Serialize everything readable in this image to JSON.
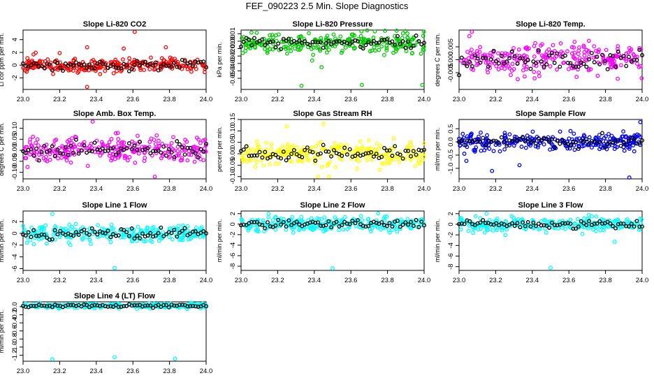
{
  "title": "FEF_090223  2.5 Min. Slope Diagnostics",
  "colors": {
    "red": "#ff0000",
    "green": "#00cc00",
    "magenta": "#ff00ff",
    "yellow": "#ffff00",
    "blue": "#0000ff",
    "cyan": "#00ffff",
    "black": "#000000"
  },
  "x_ticks": [
    "23.0",
    "23.2",
    "23.4",
    "23.6",
    "23.8",
    "24.0"
  ],
  "chart_data": [
    {
      "type": "scatter",
      "title": "Slope Li-820 CO2",
      "ylabel": "Li cor ppm per min.",
      "xlim": [
        23.0,
        24.0
      ],
      "ylim": [
        -3.8,
        5.5
      ],
      "yticks": [
        -2,
        0,
        2,
        4
      ],
      "ytick_labels": [
        "-2",
        "0",
        "2",
        "4"
      ],
      "color_key": "red",
      "base": 0,
      "spread": 1.0,
      "outliers": [
        [
          23.61,
          5.2
        ],
        [
          23.35,
          -3.4
        ],
        [
          23.35,
          2.8
        ],
        [
          23.55,
          2.6
        ],
        [
          23.78,
          2.8
        ],
        [
          23.2,
          1.9
        ]
      ],
      "seed": 11
    },
    {
      "type": "scatter",
      "title": "Slope Li-820 Pressure",
      "ylabel": "kPa per min.",
      "xlim": [
        23.0,
        24.0
      ],
      "ylim": [
        -0.065,
        0.015
      ],
      "yticks": [
        -0.05,
        -0.04,
        -0.03,
        -0.02,
        -0.01,
        0.0,
        0.01
      ],
      "ytick_labels": [
        "-0.05",
        "-0.04",
        "-0.03",
        "-0.02",
        "-0.01",
        "0.00",
        "0.01"
      ],
      "color_key": "green",
      "base": -0.002,
      "spread": 0.012,
      "outliers": [
        [
          23.33,
          -0.06
        ],
        [
          23.66,
          -0.059
        ],
        [
          23.99,
          -0.059
        ],
        [
          23.44,
          -0.035
        ]
      ],
      "seed": 23
    },
    {
      "type": "scatter",
      "title": "Slope Li-820 Temp.",
      "ylabel": "degrees C per min.",
      "xlim": [
        23.0,
        24.0
      ],
      "ylim": [
        -0.0115,
        0.0115
      ],
      "yticks": [
        -0.005,
        0.0,
        0.005
      ],
      "ytick_labels": [
        "-0.005",
        "0.000",
        "0.005"
      ],
      "color_key": "magenta",
      "base": 0,
      "spread": 0.0055,
      "outliers": [
        [
          23.07,
          0.0108
        ]
      ],
      "seed": 37
    },
    {
      "type": "scatter",
      "title": "Slope Amb. Box Temp.",
      "ylabel": "degrees C per min.",
      "xlim": [
        23.0,
        24.0
      ],
      "ylim": [
        -0.13,
        0.14
      ],
      "yticks": [
        -0.1,
        -0.05,
        0.0,
        0.05,
        0.1
      ],
      "ytick_labels": [
        "-0.10",
        "-0.05",
        "0.00",
        "0.05",
        "0.10"
      ],
      "color_key": "magenta",
      "base": 0,
      "spread": 0.055,
      "outliers": [
        [
          23.72,
          -0.12
        ],
        [
          23.38,
          0.13
        ]
      ],
      "seed": 41
    },
    {
      "type": "scatter",
      "title": "Slope Gas Stream RH",
      "ylabel": "percent per min.",
      "xlim": [
        23.0,
        24.0
      ],
      "ylim": [
        -0.11,
        0.15
      ],
      "yticks": [
        -0.1,
        -0.05,
        0.0,
        0.05,
        0.1,
        0.15
      ],
      "ytick_labels": [
        "-0.10",
        "-0.05",
        "0.00",
        "0.05",
        "0.10",
        "0.15"
      ],
      "color_key": "yellow",
      "base": 0,
      "spread": 0.045,
      "outliers": [
        [
          23.45,
          0.13
        ],
        [
          23.48,
          -0.1
        ],
        [
          23.42,
          -0.1
        ],
        [
          23.25,
          0.12
        ]
      ],
      "seed": 53
    },
    {
      "type": "scatter",
      "title": "Slope Sample Flow",
      "ylabel": "ml/min per min.",
      "xlim": [
        23.0,
        24.0
      ],
      "ylim": [
        -1.4,
        0.85
      ],
      "yticks": [
        -1.0,
        -0.5,
        0.0,
        0.5
      ],
      "ytick_labels": [
        "-1.0",
        "-0.5",
        "0.0",
        "0.5"
      ],
      "color_key": "blue",
      "base": 0,
      "spread": 0.28,
      "outliers": [
        [
          23.18,
          -1.1
        ],
        [
          23.93,
          -1.35
        ],
        [
          23.33,
          -0.88
        ],
        [
          23.04,
          -0.72
        ],
        [
          23.99,
          0.75
        ]
      ],
      "seed": 67
    },
    {
      "type": "scatter",
      "title": "Slope Line 1 Flow",
      "ylabel": "ml/min per min.",
      "xlim": [
        23.0,
        24.0
      ],
      "ylim": [
        -6.3,
        3.8
      ],
      "yticks": [
        -6,
        -4,
        -2,
        0,
        2
      ],
      "ytick_labels": [
        "-6",
        "-4",
        "-2",
        "0",
        "2"
      ],
      "color_key": "cyan",
      "base": 0,
      "spread": 1.3,
      "outliers": [
        [
          23.5,
          -5.9
        ],
        [
          23.16,
          3.3
        ]
      ],
      "seed": 71
    },
    {
      "type": "scatter",
      "title": "Slope Line 2 Flow",
      "ylabel": "ml/min per min.",
      "xlim": [
        23.0,
        24.0
      ],
      "ylim": [
        -8.8,
        2.5
      ],
      "yticks": [
        -8,
        -6,
        -4,
        -2,
        0,
        2
      ],
      "ytick_labels": [
        "-8",
        "-6",
        "-4",
        "-2",
        "0",
        "2"
      ],
      "color_key": "cyan",
      "base": 0,
      "spread": 1.2,
      "outliers": [
        [
          23.5,
          -8.4
        ],
        [
          23.15,
          2.0
        ]
      ],
      "seed": 79
    },
    {
      "type": "scatter",
      "title": "Slope Line 3 Flow",
      "ylabel": "ml/min per min.",
      "xlim": [
        23.0,
        24.0
      ],
      "ylim": [
        -8.7,
        2.5
      ],
      "yticks": [
        -8,
        -6,
        -4,
        -2,
        0,
        2
      ],
      "ytick_labels": [
        "-8",
        "-6",
        "-4",
        "-2",
        "0",
        "2"
      ],
      "color_key": "cyan",
      "base": 0,
      "spread": 1.1,
      "outliers": [
        [
          23.5,
          -8.2
        ],
        [
          23.85,
          -3.3
        ],
        [
          23.15,
          2.0
        ]
      ],
      "seed": 83
    },
    {
      "type": "scatter",
      "title": "Slope Line 4 (LT) Flow",
      "ylabel": "ml/min per min.",
      "xlim": [
        23.0,
        24.0
      ],
      "ylim": [
        -1.35,
        0.12
      ],
      "yticks": [
        -1.2,
        -1.0,
        -0.8,
        -0.6,
        -0.4,
        -0.2,
        0.0
      ],
      "ytick_labels": [
        "-1.2",
        "-1.0",
        "-0.8",
        "-0.6",
        "-0.4",
        "-0.2",
        "0.0"
      ],
      "color_key": "cyan",
      "base": 0.02,
      "spread": 0.06,
      "outliers": [
        [
          23.5,
          -1.25
        ],
        [
          23.83,
          -1.29
        ],
        [
          23.16,
          -1.3
        ]
      ],
      "seed": 97
    }
  ]
}
